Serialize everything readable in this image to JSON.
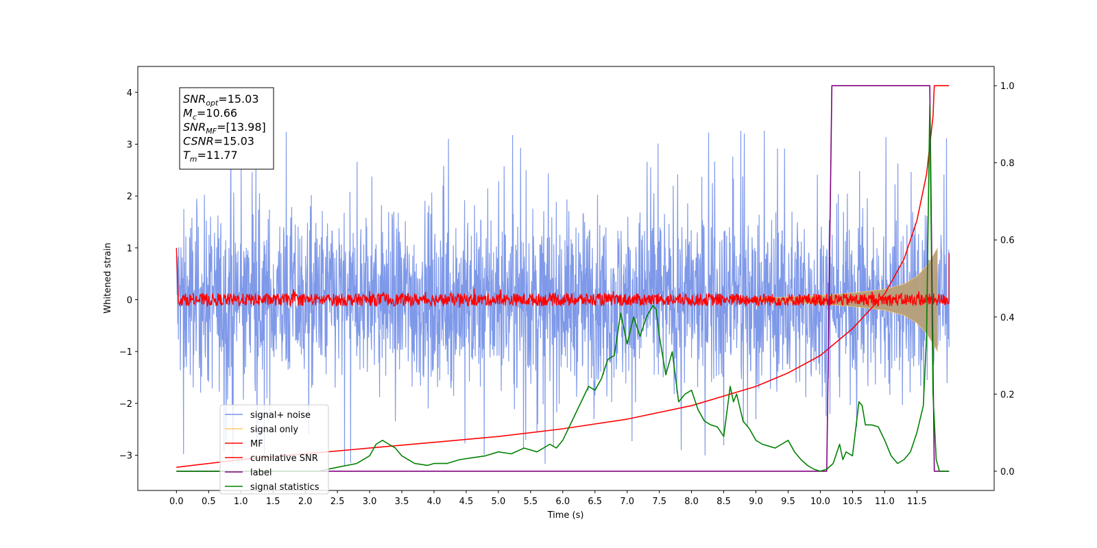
{
  "chart_data": {
    "type": "line",
    "xlabel": "Time (s)",
    "ylabel": "Whitened strain",
    "xlim": [
      -0.6,
      12.7
    ],
    "ylim": [
      -3.68,
      4.5
    ],
    "y2lim": [
      -0.05,
      1.05
    ],
    "x_ticks": [
      "0.0",
      "0.5",
      "1.0",
      "1.5",
      "2.0",
      "2.5",
      "3.0",
      "3.5",
      "4.0",
      "4.5",
      "5.0",
      "5.5",
      "6.0",
      "6.5",
      "7.0",
      "7.5",
      "8.0",
      "8.5",
      "9.0",
      "9.5",
      "10.0",
      "10.5",
      "11.0",
      "11.5"
    ],
    "y_ticks": [
      "4",
      "3",
      "2",
      "1",
      "0",
      "−1",
      "−2",
      "−3"
    ],
    "y2_ticks": [
      "1.0",
      "0.8",
      "0.6",
      "0.4",
      "0.2",
      "0.0"
    ],
    "grid": false,
    "legend_position": "lower-left",
    "colors": {
      "signal_noise": "#7893e8",
      "signal_only": "#ffc966",
      "mf": "#ff0000",
      "cumulative_snr": "#ff0000",
      "label": "#800080",
      "signal_statistics": "#008000",
      "envelope_fill": "#b8a078"
    },
    "series": [
      {
        "name": "signal+ noise",
        "axis": "left",
        "description": "noise band",
        "x": [
          0.0,
          12.0
        ],
        "y_mean": 0.0,
        "y_spread_lower": -2.4,
        "y_spread_upper": 2.4,
        "y_peak_min": -3.3,
        "y_peak_max": 3.5
      },
      {
        "name": "signal only",
        "axis": "left",
        "x": [
          9.0,
          9.5,
          10.0,
          10.5,
          11.0,
          11.3,
          11.5,
          11.65,
          11.75,
          11.82
        ],
        "y_envelope": [
          0.03,
          0.05,
          0.08,
          0.13,
          0.2,
          0.3,
          0.45,
          0.65,
          0.85,
          1.0
        ]
      },
      {
        "name": "MF",
        "axis": "left",
        "x": [
          0.0,
          0.03,
          0.1,
          12.0
        ],
        "y": [
          1.0,
          -0.05,
          0.0,
          0.0
        ],
        "noise_amplitude": 0.12,
        "end_spike": 0.9
      },
      {
        "name": "cumilative SNR",
        "axis": "right",
        "x": [
          0.0,
          1.0,
          2.0,
          3.0,
          4.0,
          5.0,
          6.0,
          7.0,
          8.0,
          9.0,
          9.5,
          10.0,
          10.5,
          11.0,
          11.3,
          11.5,
          11.65,
          11.75,
          11.77,
          12.0
        ],
        "y": [
          0.01,
          0.03,
          0.045,
          0.06,
          0.075,
          0.09,
          0.11,
          0.135,
          0.17,
          0.22,
          0.255,
          0.3,
          0.37,
          0.46,
          0.55,
          0.65,
          0.77,
          0.92,
          1.0,
          1.0
        ]
      },
      {
        "name": "label",
        "axis": "right",
        "x": [
          0.0,
          10.1,
          10.18,
          11.7,
          11.77,
          12.0
        ],
        "y": [
          0.0,
          0.0,
          1.0,
          1.0,
          0.0,
          0.0
        ]
      },
      {
        "name": "signal statistics",
        "axis": "right",
        "x": [
          0.0,
          2.2,
          2.5,
          2.8,
          3.0,
          3.1,
          3.2,
          3.3,
          3.4,
          3.5,
          3.7,
          3.9,
          4.0,
          4.2,
          4.4,
          4.6,
          4.8,
          5.0,
          5.2,
          5.4,
          5.6,
          5.8,
          5.9,
          6.0,
          6.2,
          6.4,
          6.5,
          6.6,
          6.7,
          6.8,
          6.9,
          7.0,
          7.1,
          7.2,
          7.3,
          7.4,
          7.45,
          7.5,
          7.6,
          7.7,
          7.8,
          7.9,
          8.0,
          8.1,
          8.2,
          8.3,
          8.4,
          8.5,
          8.6,
          8.65,
          8.7,
          8.8,
          8.9,
          9.0,
          9.1,
          9.2,
          9.3,
          9.4,
          9.5,
          9.6,
          9.7,
          9.8,
          9.9,
          10.0,
          10.1,
          10.2,
          10.3,
          10.35,
          10.4,
          10.5,
          10.6,
          10.65,
          10.7,
          10.8,
          10.9,
          11.0,
          11.1,
          11.2,
          11.3,
          11.4,
          11.5,
          11.6,
          11.65,
          11.7,
          11.75,
          11.8,
          11.85,
          12.0
        ],
        "y": [
          0.0,
          0.0,
          0.01,
          0.02,
          0.04,
          0.07,
          0.08,
          0.07,
          0.06,
          0.04,
          0.02,
          0.015,
          0.02,
          0.02,
          0.03,
          0.035,
          0.04,
          0.05,
          0.045,
          0.06,
          0.05,
          0.07,
          0.06,
          0.08,
          0.15,
          0.22,
          0.21,
          0.24,
          0.29,
          0.3,
          0.41,
          0.33,
          0.4,
          0.35,
          0.4,
          0.43,
          0.42,
          0.35,
          0.25,
          0.31,
          0.18,
          0.2,
          0.21,
          0.16,
          0.13,
          0.12,
          0.115,
          0.09,
          0.22,
          0.18,
          0.2,
          0.13,
          0.11,
          0.08,
          0.07,
          0.065,
          0.06,
          0.07,
          0.08,
          0.05,
          0.03,
          0.015,
          0.005,
          0.0,
          0.005,
          0.02,
          0.07,
          0.03,
          0.05,
          0.04,
          0.18,
          0.17,
          0.12,
          0.12,
          0.115,
          0.08,
          0.04,
          0.02,
          0.03,
          0.05,
          0.1,
          0.17,
          0.35,
          0.95,
          0.2,
          0.03,
          0.0,
          0.0
        ]
      }
    ],
    "legend": [
      {
        "label": "signal+ noise",
        "color": "#7893e8"
      },
      {
        "label": "signal only",
        "color": "#ffc966"
      },
      {
        "label": "MF",
        "color": "#ff0000"
      },
      {
        "label": "cumilative SNR",
        "color": "#ff0000"
      },
      {
        "label": "label",
        "color": "#800080"
      },
      {
        "label": "signal statistics",
        "color": "#008000"
      }
    ],
    "annotation": [
      {
        "name": "SNR",
        "sub": "opt",
        "value": "=15.03"
      },
      {
        "name": "M",
        "sub": "c",
        "value": "=10.66"
      },
      {
        "name": "SNR",
        "sub": "MF",
        "value": "=[13.98]"
      },
      {
        "name": "CSNR",
        "sub": "",
        "value": "=15.03"
      },
      {
        "name": "T",
        "sub": "m",
        "value": "=11.77"
      }
    ]
  }
}
